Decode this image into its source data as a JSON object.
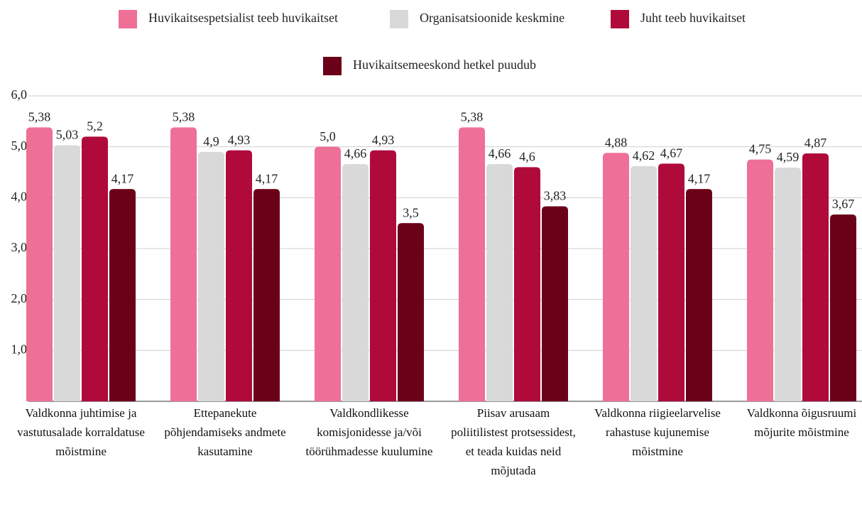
{
  "chart_data": {
    "type": "bar",
    "categories": [
      "Valdkonna juhtimise ja vastutusalade korraldatuse mõistmine",
      "Ettepanekute põhjendamiseks andmete kasutamine",
      "Valdkondlikesse komisjonidesse ja/või töörühmadesse kuulumine",
      "Piisav arusaam poliitilistest protsessidest, et teada kuidas neid mõjutada",
      "Valdkonna riigieelarvelise rahastuse kujunemise mõistmine",
      "Valdkonna õigusruumi mõjurite mõistmine"
    ],
    "series": [
      {
        "name": "Huvikaitsespetsialist teeb huvikaitset",
        "color": "#ee7096",
        "values": [
          5.38,
          5.38,
          5.0,
          5.38,
          4.88,
          4.75
        ],
        "value_labels": [
          "5,38",
          "5,38",
          "5,0",
          "5,38",
          "4,88",
          "4,75"
        ]
      },
      {
        "name": "Organisatsioonide keskmine",
        "color": "#d9d9d9",
        "values": [
          5.03,
          4.9,
          4.66,
          4.66,
          4.62,
          4.59
        ],
        "value_labels": [
          "5,03",
          "4,9",
          "4,66",
          "4,66",
          "4,62",
          "4,59"
        ]
      },
      {
        "name": "Juht teeb huvikaitset",
        "color": "#b00a3b",
        "values": [
          5.2,
          4.93,
          4.93,
          4.6,
          4.67,
          4.87
        ],
        "value_labels": [
          "5,2",
          "4,93",
          "4,93",
          "4,6",
          "4,67",
          "4,87"
        ]
      },
      {
        "name": "Huvikaitsemeeskond hetkel puudub",
        "color": "#6b0019",
        "values": [
          4.17,
          4.17,
          3.5,
          3.83,
          4.17,
          3.67
        ],
        "value_labels": [
          "4,17",
          "4,17",
          "3,5",
          "3,83",
          "4,17",
          "3,67"
        ]
      }
    ],
    "ylim": [
      0,
      6
    ],
    "yticks": [
      {
        "value": 1,
        "label": "1,0"
      },
      {
        "value": 2,
        "label": "2,0"
      },
      {
        "value": 3,
        "label": "3,0"
      },
      {
        "value": 4,
        "label": "4,0"
      },
      {
        "value": 5,
        "label": "5,0"
      },
      {
        "value": 6,
        "label": "6,0"
      }
    ],
    "grid": true,
    "legend": "top"
  }
}
